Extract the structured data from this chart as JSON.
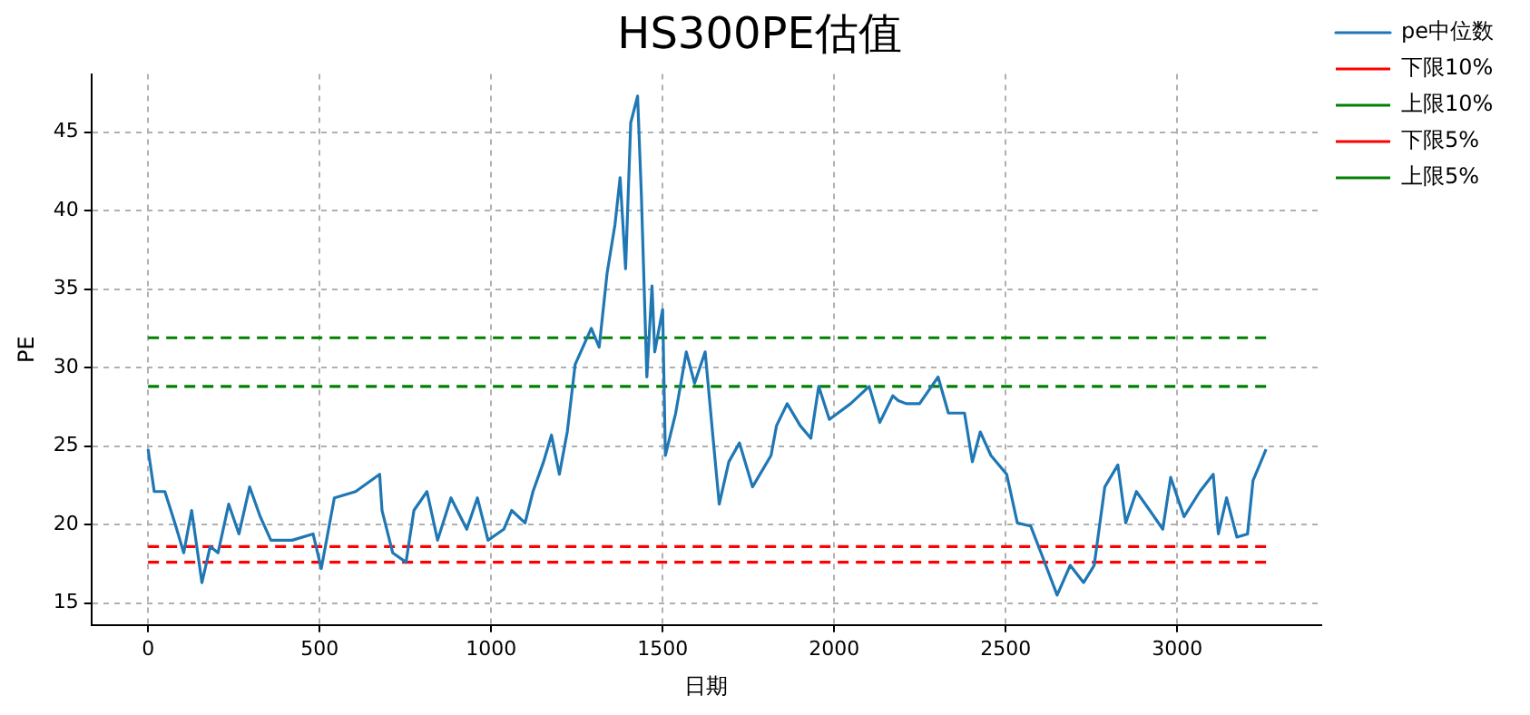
{
  "chart_data": {
    "type": "line",
    "title": "HS300PE估值",
    "xlabel": "日期",
    "ylabel": "PE",
    "xlim": [
      -165,
      3420
    ],
    "ylim": [
      13.6,
      48.7
    ],
    "xticks": [
      0,
      500,
      1000,
      1500,
      2000,
      2500,
      3000
    ],
    "yticks": [
      15,
      20,
      25,
      30,
      35,
      40,
      45
    ],
    "grid": true,
    "legend": "top right",
    "marker": "none",
    "series": [
      {
        "name": "pe中位数",
        "color": "#1f77b4",
        "line_style": "solid",
        "x": [
          0,
          18,
          49,
          78,
          104,
          127,
          157,
          181,
          204,
          235,
          265,
          296,
          327,
          358,
          420,
          481,
          505,
          543,
          605,
          675,
          682,
          713,
          752,
          775,
          813,
          844,
          883,
          929,
          960,
          991,
          1037,
          1060,
          1099,
          1122,
          1153,
          1176,
          1199,
          1222,
          1245,
          1292,
          1315,
          1338,
          1361,
          1376,
          1392,
          1407,
          1427,
          1438,
          1454,
          1469,
          1477,
          1500,
          1508,
          1538,
          1569,
          1593,
          1624,
          1647,
          1665,
          1693,
          1724,
          1762,
          1816,
          1832,
          1863,
          1901,
          1932,
          1955,
          1986,
          2048,
          2102,
          2133,
          2171,
          2187,
          2210,
          2249,
          2303,
          2333,
          2380,
          2403,
          2426,
          2457,
          2503,
          2534,
          2573,
          2603,
          2650,
          2688,
          2727,
          2758,
          2789,
          2827,
          2850,
          2881,
          2920,
          2958,
          2981,
          3020,
          3066,
          3105,
          3120,
          3144,
          3174,
          3205,
          3221,
          3244,
          3259
        ],
        "values": [
          24.8,
          22.1,
          22.1,
          20.1,
          18.2,
          20.9,
          16.3,
          18.6,
          18.2,
          21.3,
          19.4,
          22.4,
          20.5,
          19.0,
          19.0,
          19.4,
          17.2,
          21.7,
          22.1,
          23.2,
          20.9,
          18.2,
          17.6,
          20.9,
          22.1,
          19.0,
          21.7,
          19.7,
          21.7,
          19.0,
          19.7,
          20.9,
          20.1,
          22.1,
          24.0,
          25.7,
          23.2,
          25.9,
          30.2,
          32.5,
          31.3,
          36.0,
          39.1,
          42.1,
          36.3,
          45.6,
          47.3,
          41.0,
          29.4,
          35.2,
          31.0,
          33.7,
          24.4,
          27.1,
          31.0,
          29.0,
          31.0,
          25.5,
          21.3,
          24.0,
          25.2,
          22.4,
          24.4,
          26.3,
          27.7,
          26.3,
          25.5,
          28.8,
          26.7,
          27.7,
          28.8,
          26.5,
          28.2,
          27.9,
          27.7,
          27.7,
          29.4,
          27.1,
          27.1,
          24.0,
          25.9,
          24.4,
          23.2,
          20.1,
          19.9,
          18.2,
          15.5,
          17.4,
          16.3,
          17.4,
          22.4,
          23.8,
          20.1,
          22.1,
          20.9,
          19.7,
          23.0,
          20.5,
          22.1,
          23.2,
          19.4,
          21.7,
          19.2,
          19.4,
          22.8,
          24.0,
          24.8
        ]
      },
      {
        "name": "下限10%",
        "color": "#ff0000",
        "line_style": "dashed",
        "x": [
          0,
          3260
        ],
        "values": [
          18.6,
          18.6
        ]
      },
      {
        "name": "上限10%",
        "color": "#008000",
        "line_style": "dashed",
        "x": [
          0,
          3260
        ],
        "values": [
          28.8,
          28.8
        ]
      },
      {
        "name": "下限5%",
        "color": "#ff0000",
        "line_style": "dashed",
        "x": [
          0,
          3260
        ],
        "values": [
          17.6,
          17.6
        ]
      },
      {
        "name": "上限5%",
        "color": "#008000",
        "line_style": "dashed",
        "x": [
          0,
          3260
        ],
        "values": [
          31.9,
          31.9
        ]
      }
    ]
  }
}
